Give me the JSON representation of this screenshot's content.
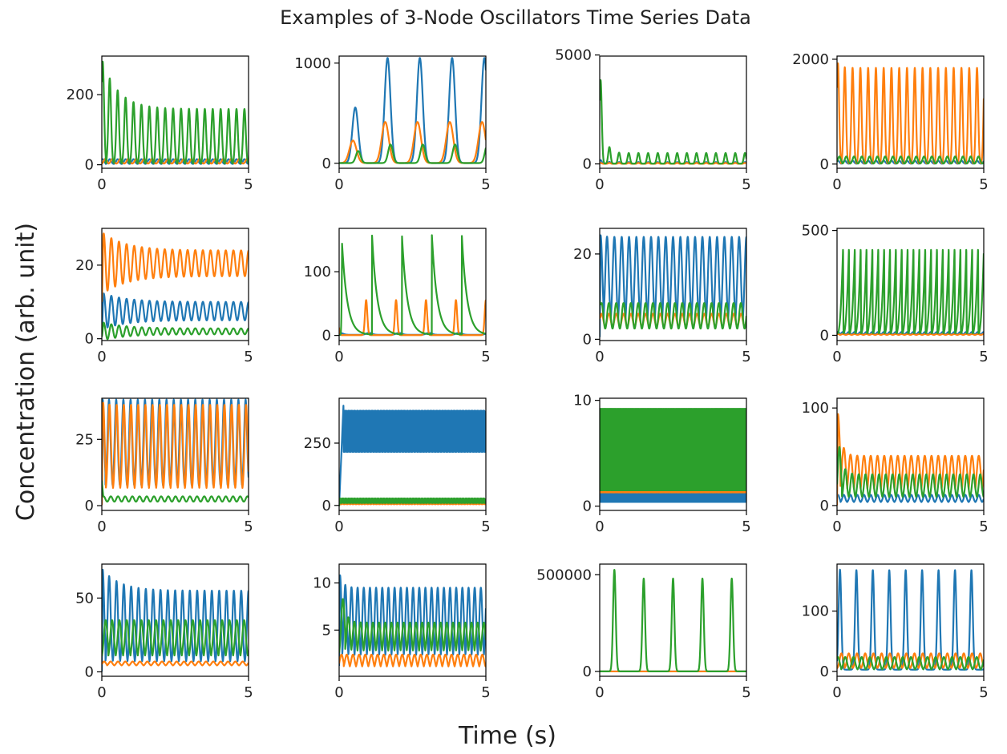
{
  "figure": {
    "title": "Examples of 3-Node Oscillators Time Series Data",
    "xlabel": "Time (s)",
    "ylabel": "Concentration (arb. unit)"
  },
  "colors": {
    "series_0": "#1f77b4",
    "series_1": "#ff7f0e",
    "series_2": "#2ca02c"
  },
  "chart_data": [
    {
      "type": "line",
      "row": 0,
      "col": 0,
      "xlim": [
        0,
        5
      ],
      "ylim": [
        -10,
        310
      ],
      "xticks": [
        0,
        5
      ],
      "yticks": [
        0,
        200
      ],
      "series": [
        {
          "kind": "osc",
          "base": 2,
          "amp": 14,
          "period": 0.27,
          "width": 0.05,
          "decay": 0
        },
        {
          "kind": "osc",
          "base": 3,
          "amp": 14,
          "period": 0.27,
          "width": 0.05,
          "decay": 0,
          "phase": 0.09
        },
        {
          "kind": "osc",
          "base": 2,
          "amp": 157,
          "period": 0.27,
          "width": 0.045,
          "spike": 302,
          "decay": 0.55
        }
      ]
    },
    {
      "type": "line",
      "row": 0,
      "col": 1,
      "xlim": [
        0,
        5
      ],
      "ylim": [
        -50,
        1070
      ],
      "xticks": [
        0,
        5
      ],
      "yticks": [
        0,
        1000
      ],
      "series": [
        {
          "kind": "osc",
          "base": 2,
          "amp": 1050,
          "period": 1.1,
          "width": 0.1,
          "first": 0.55,
          "firstAmp": 555
        },
        {
          "kind": "osc",
          "base": 2,
          "amp": 410,
          "period": 1.1,
          "width": 0.12,
          "first": 0.55,
          "firstAmp": 225,
          "phase": -0.08
        },
        {
          "kind": "osc",
          "base": 2,
          "amp": 185,
          "period": 1.1,
          "width": 0.08,
          "first": 0.55,
          "firstAmp": 120,
          "phase": 0.1
        }
      ]
    },
    {
      "type": "line",
      "row": 0,
      "col": 2,
      "xlim": [
        0,
        5
      ],
      "ylim": [
        -200,
        4950
      ],
      "xticks": [
        0,
        5
      ],
      "yticks": [
        0,
        5000
      ],
      "series": [
        {
          "kind": "osc",
          "base": 5,
          "amp": 80,
          "period": 0.33,
          "width": 0.04,
          "spike": 200
        },
        {
          "kind": "osc",
          "base": 5,
          "amp": 40,
          "period": 0.33,
          "width": 0.04
        },
        {
          "kind": "osc",
          "base": 10,
          "amp": 490,
          "period": 0.33,
          "width": 0.04,
          "spike": 4800
        }
      ]
    },
    {
      "type": "line",
      "row": 0,
      "col": 3,
      "xlim": [
        0,
        5
      ],
      "ylim": [
        -80,
        2060
      ],
      "xticks": [
        0,
        5
      ],
      "yticks": [
        0,
        2000
      ],
      "series": [
        {
          "kind": "osc",
          "base": 5,
          "amp": 60,
          "period": 0.265,
          "width": 0.05
        },
        {
          "kind": "osc",
          "base": 5,
          "amp": 1830,
          "period": 0.265,
          "width": 0.04,
          "spike": 1950
        },
        {
          "kind": "osc",
          "base": 5,
          "amp": 140,
          "period": 0.265,
          "width": 0.05,
          "phase": 0.05
        }
      ]
    },
    {
      "type": "line",
      "row": 1,
      "col": 0,
      "xlim": [
        0,
        5
      ],
      "ylim": [
        -0.5,
        30
      ],
      "xticks": [
        0,
        5
      ],
      "yticks": [
        0,
        20
      ],
      "series": [
        {
          "kind": "sine",
          "mean": 7.5,
          "amp": 2.5,
          "period": 0.26,
          "start": 2,
          "spike": 12.5,
          "decay": 0.8
        },
        {
          "kind": "sine",
          "mean": 20.5,
          "amp": 3.5,
          "period": 0.26,
          "start": 10,
          "spike": 29,
          "decay": 0.8
        },
        {
          "kind": "sine",
          "mean": 2.0,
          "amp": 0.8,
          "period": 0.26,
          "start": 0.5,
          "spike": 4.5,
          "decay": 0.8
        }
      ]
    },
    {
      "type": "line",
      "row": 1,
      "col": 1,
      "xlim": [
        0,
        5
      ],
      "ylim": [
        -8,
        168
      ],
      "xticks": [
        0,
        5
      ],
      "yticks": [
        0,
        100
      ],
      "series": [
        {
          "kind": "osc",
          "base": 1,
          "amp": 3,
          "period": 1.02,
          "width": 0.1
        },
        {
          "kind": "osc",
          "base": 0.5,
          "amp": 55,
          "period": 1.02,
          "width": 0.04,
          "phase": -0.1
        },
        {
          "kind": "decayspike",
          "base": 1,
          "amp": 157,
          "period": 1.02,
          "first": 0.1,
          "firstAmp": 143,
          "rise": 0.06,
          "tau": 0.18
        }
      ]
    },
    {
      "type": "line",
      "row": 1,
      "col": 2,
      "xlim": [
        0,
        5
      ],
      "ylim": [
        -0.3,
        26
      ],
      "xticks": [
        0,
        5
      ],
      "yticks": [
        0,
        20
      ],
      "series": [
        {
          "kind": "osc",
          "base": 2,
          "amp": 22,
          "period": 0.25,
          "width": 0.06,
          "spike": 24.5,
          "start": 0.5
        },
        {
          "kind": "sine",
          "mean": 4.5,
          "amp": 1.5,
          "period": 0.25,
          "start": 5
        },
        {
          "kind": "sine",
          "mean": 5.5,
          "amp": 3.0,
          "period": 0.25,
          "start": 9
        }
      ]
    },
    {
      "type": "line",
      "row": 1,
      "col": 3,
      "xlim": [
        0,
        5
      ],
      "ylim": [
        -25,
        510
      ],
      "xticks": [
        0,
        5
      ],
      "yticks": [
        0,
        500
      ],
      "series": [
        {
          "kind": "osc",
          "base": 2,
          "amp": 14,
          "period": 0.2,
          "width": 0.05
        },
        {
          "kind": "osc",
          "base": 1,
          "amp": 5,
          "period": 0.2,
          "width": 0.05
        },
        {
          "kind": "ramp",
          "base": 10,
          "amp": 480,
          "period": 0.2,
          "first": 0.02
        }
      ]
    },
    {
      "type": "line",
      "row": 2,
      "col": 0,
      "xlim": [
        0,
        5
      ],
      "ylim": [
        -1.8,
        40.5
      ],
      "xticks": [
        0,
        5
      ],
      "yticks": [
        0,
        25
      ],
      "series": [
        {
          "kind": "osc",
          "base": 6,
          "amp": 34,
          "period": 0.245,
          "width": 0.05,
          "spike": 39.5,
          "start": 0.2
        },
        {
          "kind": "osc",
          "base": 5,
          "amp": 33,
          "period": 0.245,
          "width": 0.05,
          "spike": 39,
          "start": 0.2,
          "phase": 0.015
        },
        {
          "kind": "sine",
          "mean": 2.5,
          "amp": 1.0,
          "period": 0.245,
          "start": 9.5
        }
      ]
    },
    {
      "type": "line",
      "row": 2,
      "col": 1,
      "xlim": [
        0,
        5
      ],
      "ylim": [
        -20,
        430
      ],
      "xticks": [
        0,
        5
      ],
      "yticks": [
        0,
        250
      ],
      "series": [
        {
          "kind": "band",
          "lo": 215,
          "hi": 380,
          "start": 0,
          "spike": 410,
          "rise": 0.15,
          "period": 0.05
        },
        {
          "kind": "band",
          "lo": 5,
          "hi": 20,
          "start": 0,
          "period": 0.05
        },
        {
          "kind": "band",
          "lo": 10,
          "hi": 28,
          "start": 0,
          "period": 0.05
        }
      ]
    },
    {
      "type": "line",
      "row": 2,
      "col": 2,
      "xlim": [
        0,
        5
      ],
      "ylim": [
        -0.4,
        10.2
      ],
      "xticks": [
        0,
        5
      ],
      "yticks": [
        0,
        10
      ],
      "series": [
        {
          "kind": "band",
          "lo": 0.4,
          "hi": 1.3,
          "start": 0.8,
          "period": 0.02
        },
        {
          "kind": "band",
          "lo": 1.3,
          "hi": 2.4,
          "start": 5,
          "period": 0.02
        },
        {
          "kind": "band",
          "lo": 1.5,
          "hi": 9.2,
          "start": 9.2,
          "period": 0.02
        }
      ]
    },
    {
      "type": "line",
      "row": 2,
      "col": 3,
      "xlim": [
        0,
        5
      ],
      "ylim": [
        -5,
        110
      ],
      "xticks": [
        0,
        5
      ],
      "yticks": [
        0,
        100
      ],
      "series": [
        {
          "kind": "osc",
          "base": 3,
          "amp": 8,
          "period": 0.23,
          "width": 0.05
        },
        {
          "kind": "osc",
          "base": 5,
          "amp": 46,
          "period": 0.23,
          "width": 0.07,
          "spike": 106,
          "start": 0.1
        },
        {
          "kind": "osc",
          "base": 7,
          "amp": 25,
          "period": 0.23,
          "width": 0.05,
          "spike": 68,
          "phase": 0.05
        }
      ]
    },
    {
      "type": "line",
      "row": 3,
      "col": 0,
      "xlim": [
        0,
        5
      ],
      "ylim": [
        -3,
        73
      ],
      "xticks": [
        0,
        5
      ],
      "yticks": [
        0,
        50
      ],
      "series": [
        {
          "kind": "osc",
          "base": 5,
          "amp": 50,
          "period": 0.25,
          "width": 0.05,
          "spike": 70,
          "decay": 0.6,
          "start": 0.1
        },
        {
          "kind": "osc",
          "base": 4,
          "amp": 3,
          "period": 0.25,
          "width": 0.06,
          "phase": 0.05
        },
        {
          "kind": "osc",
          "base": 8,
          "amp": 27,
          "period": 0.25,
          "width": 0.06,
          "spike": 34,
          "phase": 0.1
        }
      ]
    },
    {
      "type": "line",
      "row": 3,
      "col": 1,
      "xlim": [
        0,
        5
      ],
      "ylim": [
        0.1,
        12
      ],
      "xticks": [
        0,
        5
      ],
      "yticks": [
        5,
        10
      ],
      "series": [
        {
          "kind": "osc",
          "base": 1.5,
          "amp": 8,
          "period": 0.21,
          "width": 0.05,
          "spike": 11.2,
          "start": 1.2
        },
        {
          "kind": "osc",
          "base": 0.8,
          "amp": 1.6,
          "period": 0.21,
          "width": 0.06,
          "phase": 0.05
        },
        {
          "kind": "osc",
          "base": 2,
          "amp": 3.8,
          "period": 0.21,
          "width": 0.06,
          "spike": 9,
          "phase": 0.1
        }
      ]
    },
    {
      "type": "line",
      "row": 3,
      "col": 2,
      "xlim": [
        0,
        5
      ],
      "ylim": [
        -25000,
        555000
      ],
      "xticks": [
        0,
        5
      ],
      "yticks": [
        0,
        500000
      ],
      "series": [
        {
          "kind": "flat",
          "value": 100
        },
        {
          "kind": "flat",
          "value": 200
        },
        {
          "kind": "osc",
          "base": 500,
          "amp": 480000,
          "period": 1.0,
          "width": 0.045,
          "first": 0.5,
          "firstAmp": 525000
        }
      ]
    },
    {
      "type": "line",
      "row": 3,
      "col": 3,
      "xlim": [
        0,
        5
      ],
      "ylim": [
        -8,
        178
      ],
      "xticks": [
        0,
        5
      ],
      "yticks": [
        0,
        100
      ],
      "series": [
        {
          "kind": "osc",
          "base": 3,
          "amp": 165,
          "period": 0.56,
          "width": 0.045,
          "spike": 170,
          "first": 0.1
        },
        {
          "kind": "osc",
          "base": 4,
          "amp": 26,
          "period": 0.28,
          "width": 0.06,
          "phase": 0.12
        },
        {
          "kind": "osc",
          "base": 2,
          "amp": 22,
          "period": 0.28,
          "width": 0.06
        }
      ]
    }
  ]
}
